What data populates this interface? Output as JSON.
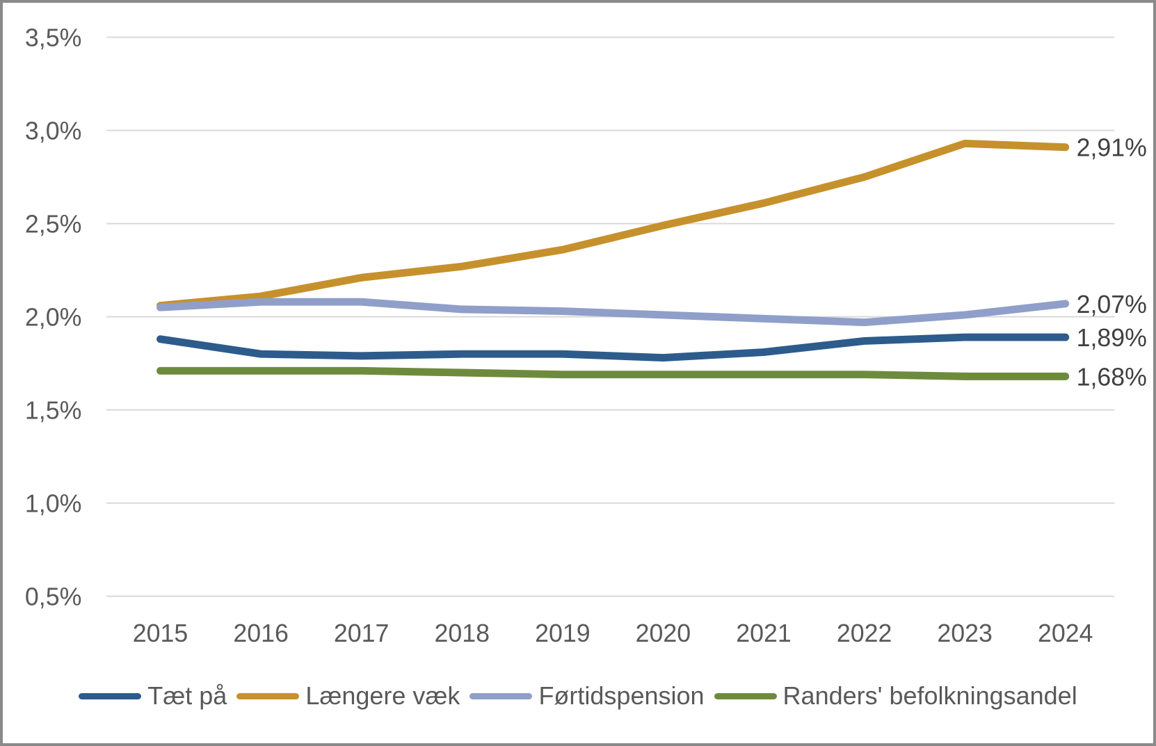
{
  "chart_data": {
    "type": "line",
    "title": "",
    "xlabel": "",
    "ylabel": "",
    "x_labels": [
      "2015",
      "2016",
      "2017",
      "2018",
      "2019",
      "2020",
      "2021",
      "2022",
      "2023",
      "2024"
    ],
    "y_tick_labels": [
      "3,5%",
      "3,0%",
      "2,5%",
      "2,0%",
      "1,5%",
      "1,0%",
      "0,5%"
    ],
    "y_tick_values": [
      3.5,
      3.0,
      2.5,
      2.0,
      1.5,
      1.0,
      0.5
    ],
    "ylim": [
      0.5,
      3.5
    ],
    "grid": true,
    "legend_position": "bottom",
    "series": [
      {
        "name": "Tæt på",
        "color": "#2D5B8C",
        "values": [
          1.88,
          1.8,
          1.79,
          1.8,
          1.8,
          1.78,
          1.81,
          1.87,
          1.89,
          1.89
        ],
        "end_label": "1,89%"
      },
      {
        "name": "Længere væk",
        "color": "#C6912C",
        "values": [
          2.06,
          2.11,
          2.21,
          2.27,
          2.36,
          2.49,
          2.61,
          2.75,
          2.93,
          2.91
        ],
        "end_label": "2,91%"
      },
      {
        "name": "Førtidspension",
        "color": "#8F9FC9",
        "values": [
          2.05,
          2.08,
          2.08,
          2.04,
          2.03,
          2.01,
          1.99,
          1.97,
          2.01,
          2.07
        ],
        "end_label": "2,07%"
      },
      {
        "name": "Randers' befolkningsandel",
        "color": "#6E8B3D",
        "values": [
          1.71,
          1.71,
          1.71,
          1.7,
          1.69,
          1.69,
          1.69,
          1.69,
          1.68,
          1.68
        ],
        "end_label": "1,68%"
      }
    ]
  },
  "style": {
    "axis_text_color": "#595959",
    "end_label_color": "#404040",
    "gridline_color": "#D9D9D9",
    "background": "#FFFFFF",
    "frame_border_color": "#8A8A8A"
  }
}
